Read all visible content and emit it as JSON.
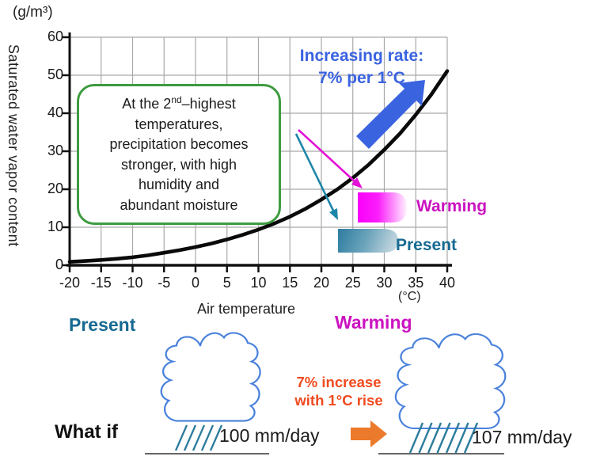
{
  "colors": {
    "blue": "#3a63e0",
    "magenta_label": "#cb12c0",
    "magenta_box": "#fa00fa",
    "teal_label": "#176a92",
    "teal_box": "#2d7ca0",
    "green_border": "#3e9b40",
    "orange_arrow": "#ec7a2c",
    "note_red": "#f04a1e",
    "cloud_blue": "#4a82dc",
    "rain_teal": "#2c7c9c",
    "curve_black": "#0a0a0a",
    "grid_gray": "#a9a9a9"
  },
  "chart": {
    "unit_y": "(g/m³)",
    "y_title": "Saturated water vapor content",
    "x_title": "Air temperature",
    "unit_x": "(°C)",
    "y_ticks": [
      0,
      10,
      20,
      30,
      40,
      50,
      60
    ],
    "x_ticks": [
      -20,
      -15,
      -10,
      -5,
      0,
      5,
      10,
      15,
      20,
      25,
      30,
      35,
      40
    ],
    "callout": {
      "line1_pre": "At the 2",
      "line1_sup": "nd",
      "line1_post": "–highest",
      "lines": [
        "temperatures,",
        "precipitation becomes",
        "stronger, with high",
        "humidity and",
        "abundant moisture"
      ]
    },
    "rate_line1": "Increasing rate:",
    "rate_line2": "7% per 1°C",
    "warming_label": "Warming",
    "present_label": "Present"
  },
  "chart_data": {
    "type": "line",
    "title": "Saturated water vapor content vs air temperature",
    "x": [
      -20,
      -15,
      -10,
      -5,
      0,
      5,
      10,
      15,
      20,
      25,
      30,
      35,
      40
    ],
    "y": [
      0.9,
      1.4,
      2.1,
      3.3,
      4.8,
      6.8,
      9.4,
      12.8,
      17.3,
      23.0,
      30.4,
      39.6,
      51.1
    ],
    "xlabel": "Air temperature (°C)",
    "ylabel": "Saturated water vapor content (g/m³)",
    "xlim": [
      -20,
      40
    ],
    "ylim": [
      0,
      60
    ],
    "grid": true,
    "legend": false,
    "annotations": [
      "Increasing rate: 7% per 1°C",
      "Warming",
      "Present",
      "At the 2nd–highest temperatures, precipitation becomes stronger, with high humidity and abundant moisture"
    ]
  },
  "bottom": {
    "present_label": "Present",
    "warming_label": "Warming",
    "note_line1": "7% increase",
    "note_line2": "with 1°C rise",
    "what_if": "What if",
    "present_amount": "100 mm/day",
    "warming_amount": "107 mm/day"
  }
}
